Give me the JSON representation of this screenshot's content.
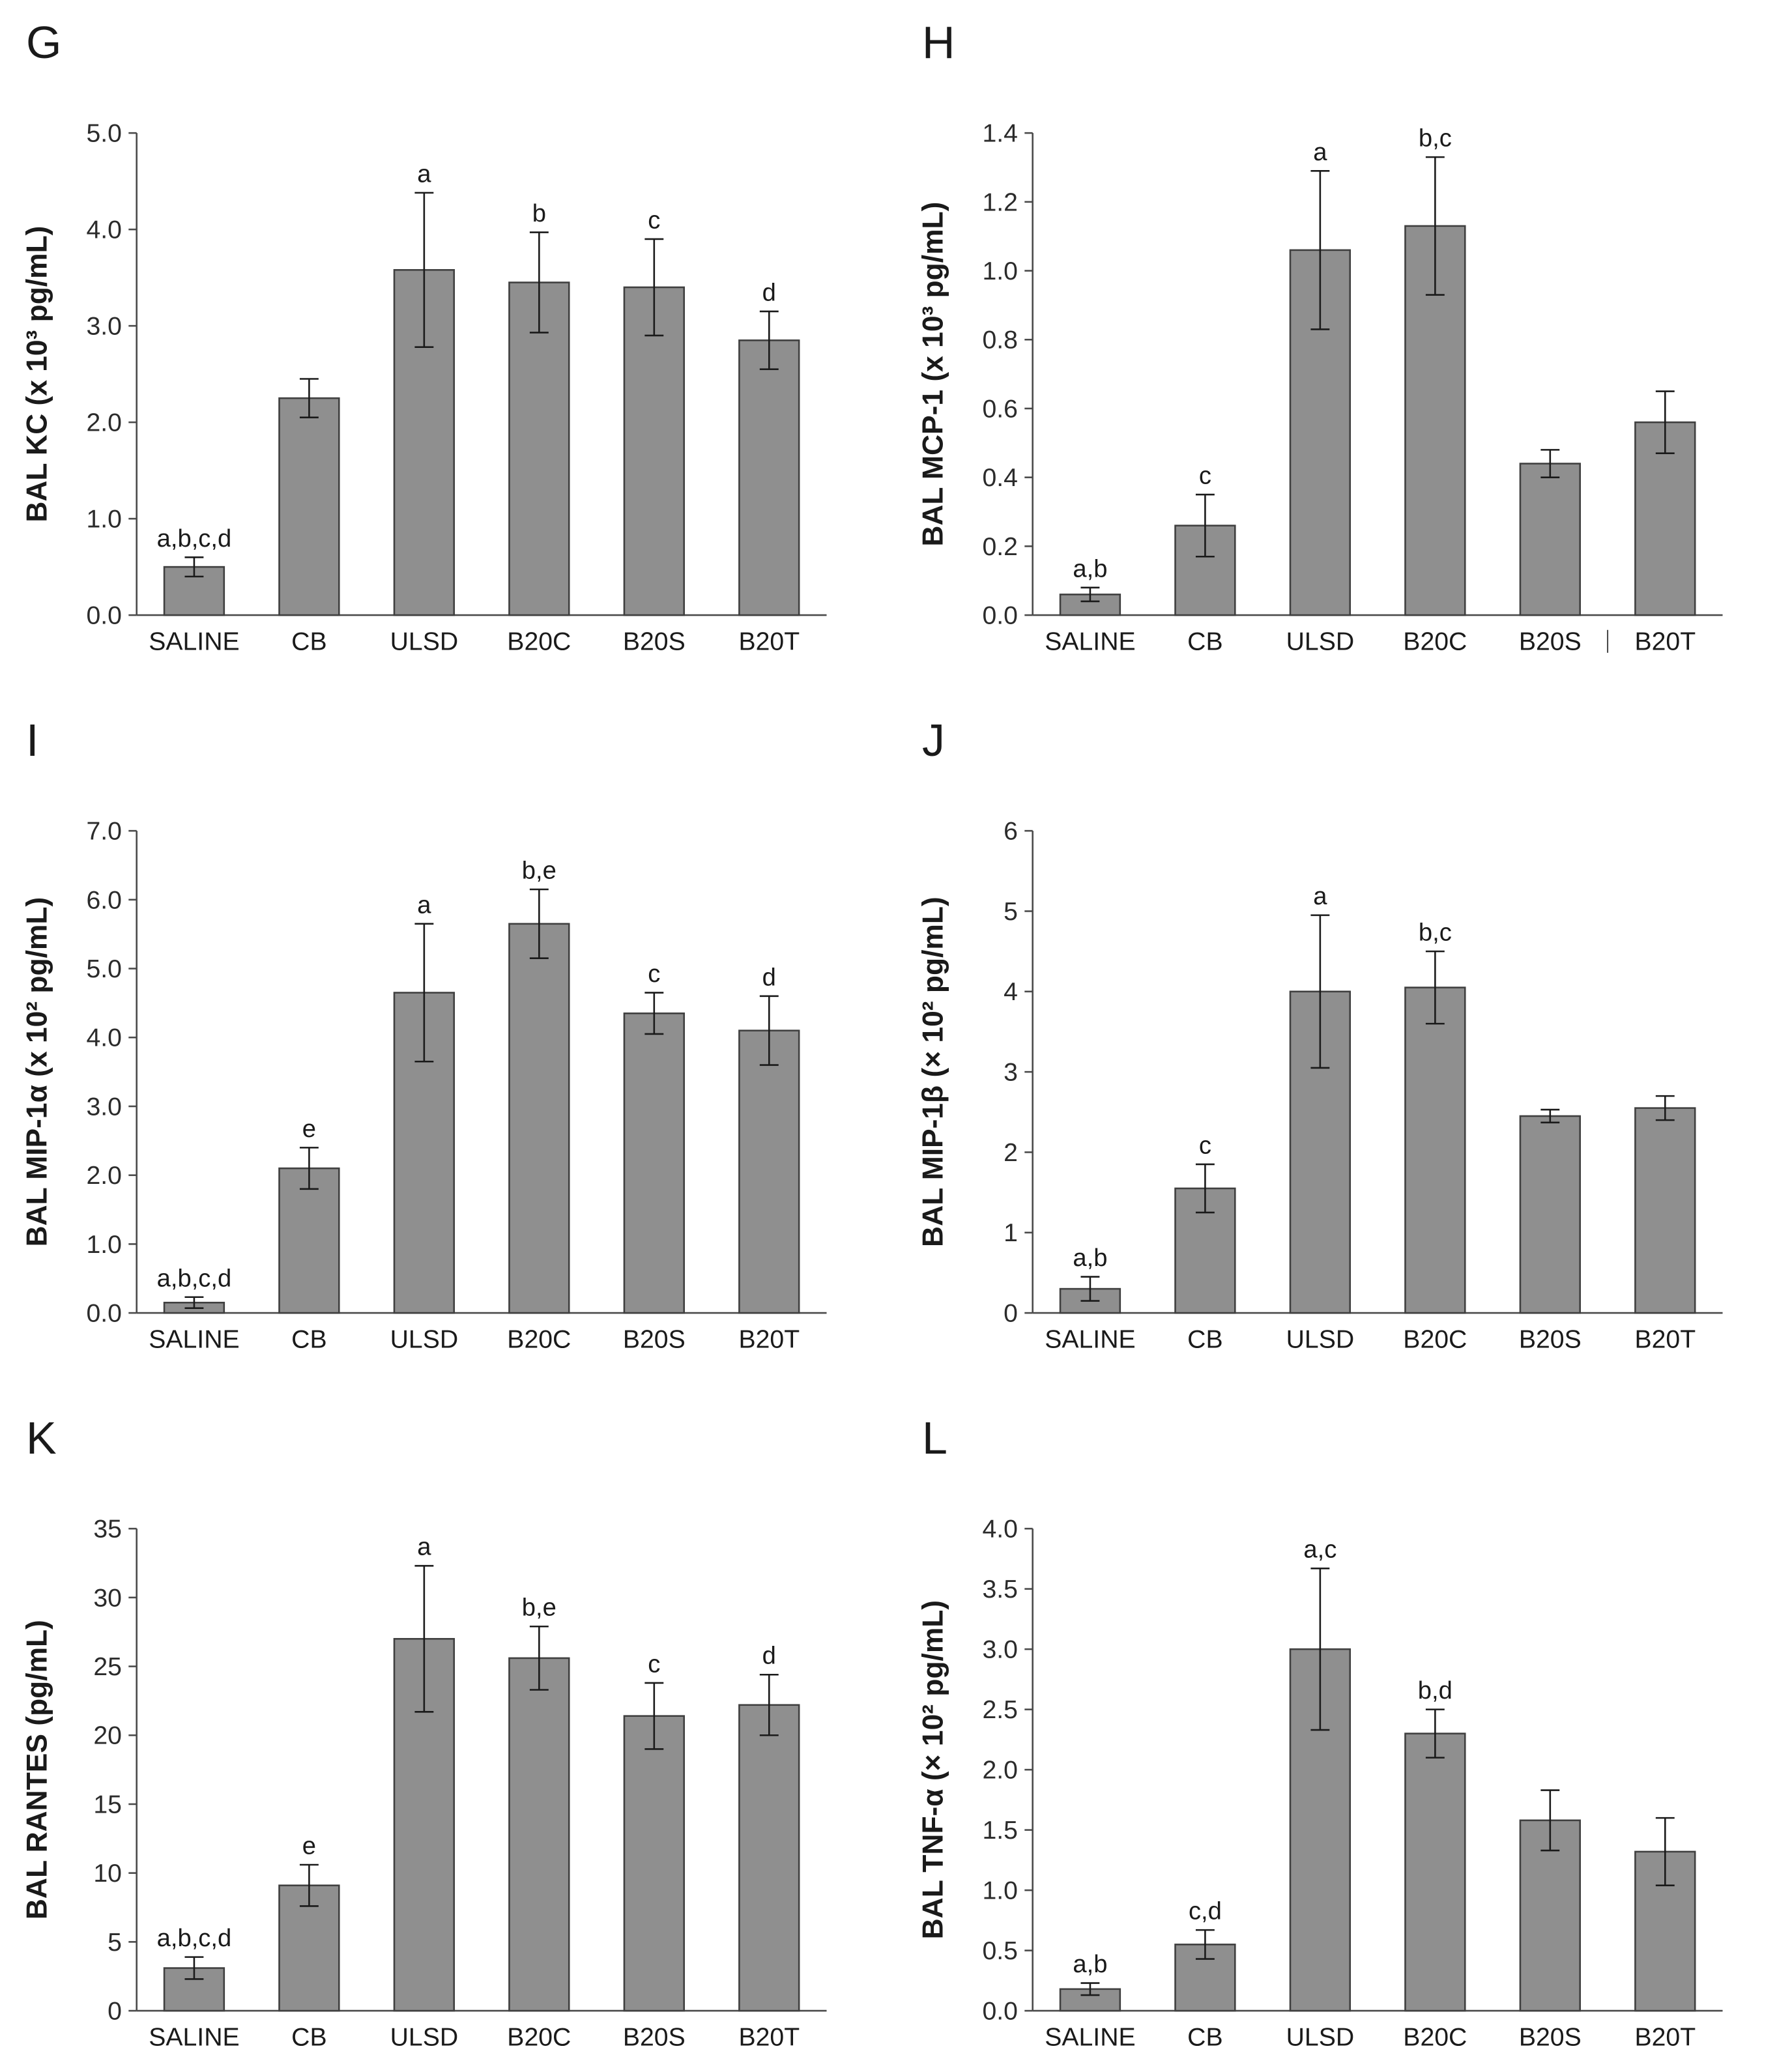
{
  "figure": {
    "background": "#ffffff",
    "style": {
      "bar_fill": "#8f8f8f",
      "bar_stroke": "#3f3f3f",
      "axis_color": "#4a4a4a",
      "text_color": "#1a1a1a",
      "tick_text_color": "#2b2b2b",
      "error_color": "#1a1a1a"
    }
  },
  "chart_data": [
    {
      "type": "bar",
      "panel": "G",
      "ylabel": "BAL KC (x 10³ pg/mL)",
      "xlabel": "",
      "categories": [
        "SALINE",
        "CB",
        "ULSD",
        "B20C",
        "B20S",
        "B20T"
      ],
      "values": [
        0.5,
        2.25,
        3.58,
        3.45,
        3.4,
        2.85
      ],
      "errors": [
        0.1,
        0.2,
        0.8,
        0.52,
        0.5,
        0.3
      ],
      "annotations": [
        "a,b,c,d",
        "",
        "a",
        "b",
        "c",
        "d"
      ],
      "ylim": [
        0,
        5
      ],
      "ytick_step": 1,
      "ytick_decimals": 1,
      "grid": false,
      "legend": null
    },
    {
      "type": "bar",
      "panel": "H",
      "ylabel": "BAL MCP-1 (x 10³ pg/mL)",
      "xlabel": "",
      "categories": [
        "SALINE",
        "CB",
        "ULSD",
        "B20C",
        "B20S",
        "B20T"
      ],
      "values": [
        0.06,
        0.26,
        1.06,
        1.13,
        0.44,
        0.56
      ],
      "errors": [
        0.02,
        0.09,
        0.23,
        0.2,
        0.04,
        0.09
      ],
      "annotations": [
        "a,b",
        "c",
        "a",
        "b,c",
        "",
        ""
      ],
      "ylim": [
        0,
        1.4
      ],
      "ytick_step": 0.2,
      "ytick_decimals": 1,
      "divider_before_last": true,
      "grid": false,
      "legend": null
    },
    {
      "type": "bar",
      "panel": "I",
      "ylabel": "BAL MIP-1α (x 10² pg/mL)",
      "xlabel": "",
      "categories": [
        "SALINE",
        "CB",
        "ULSD",
        "B20C",
        "B20S",
        "B20T"
      ],
      "values": [
        0.15,
        2.1,
        4.65,
        5.65,
        4.35,
        4.1
      ],
      "errors": [
        0.08,
        0.3,
        1.0,
        0.5,
        0.3,
        0.5
      ],
      "annotations": [
        "a,b,c,d",
        "e",
        "a",
        "b,e",
        "c",
        "d"
      ],
      "ylim": [
        0,
        7
      ],
      "ytick_step": 1,
      "ytick_decimals": 1,
      "grid": false,
      "legend": null
    },
    {
      "type": "bar",
      "panel": "J",
      "ylabel": "BAL MIP-1β (× 10² pg/mL)",
      "xlabel": "",
      "categories": [
        "SALINE",
        "CB",
        "ULSD",
        "B20C",
        "B20S",
        "B20T"
      ],
      "values": [
        0.3,
        1.55,
        4.0,
        4.05,
        2.45,
        2.55
      ],
      "errors": [
        0.15,
        0.3,
        0.95,
        0.45,
        0.08,
        0.15
      ],
      "annotations": [
        "a,b",
        "c",
        "a",
        "b,c",
        "",
        ""
      ],
      "ylim": [
        0,
        6
      ],
      "ytick_step": 1,
      "ytick_decimals": 0,
      "grid": false,
      "legend": null
    },
    {
      "type": "bar",
      "panel": "K",
      "ylabel": "BAL RANTES (pg/mL)",
      "xlabel": "",
      "categories": [
        "SALINE",
        "CB",
        "ULSD",
        "B20C",
        "B20S",
        "B20T"
      ],
      "values": [
        3.1,
        9.1,
        27.0,
        25.6,
        21.4,
        22.2
      ],
      "errors": [
        0.8,
        1.5,
        5.3,
        2.3,
        2.4,
        2.2
      ],
      "annotations": [
        "a,b,c,d",
        "e",
        "a",
        "b,e",
        "c",
        "d"
      ],
      "ylim": [
        0,
        35
      ],
      "ytick_step": 5,
      "ytick_decimals": 0,
      "grid": false,
      "legend": null
    },
    {
      "type": "bar",
      "panel": "L",
      "ylabel": "BAL TNF-α (× 10² pg/mL)",
      "xlabel": "",
      "categories": [
        "SALINE",
        "CB",
        "ULSD",
        "B20C",
        "B20S",
        "B20T"
      ],
      "values": [
        0.18,
        0.55,
        3.0,
        2.3,
        1.58,
        1.32
      ],
      "errors": [
        0.05,
        0.12,
        0.67,
        0.2,
        0.25,
        0.28
      ],
      "annotations": [
        "a,b",
        "c,d",
        "a,c",
        "b,d",
        "",
        ""
      ],
      "ylim": [
        0,
        4
      ],
      "ytick_step": 0.5,
      "ytick_decimals": 1,
      "grid": false,
      "legend": null
    }
  ]
}
